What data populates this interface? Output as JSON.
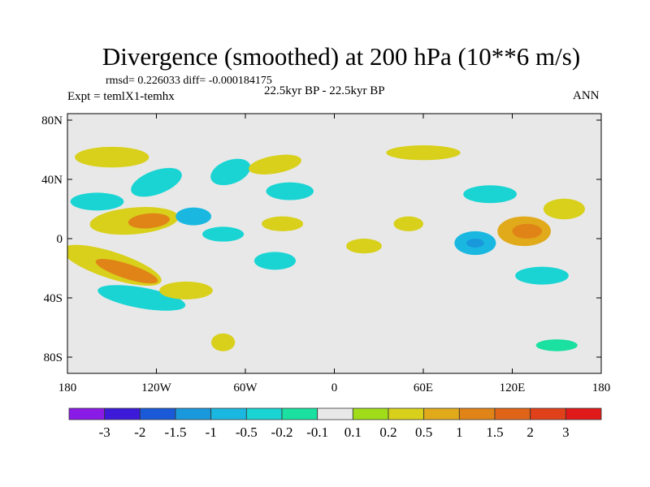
{
  "chart_data": {
    "type": "heatmap",
    "title": "Divergence (smoothed) at 200 hPa (10**6 m/s)",
    "stats": "rmsd= 0.226033 diff= -0.000184175",
    "left_label": "Expt = temlX1-temhx",
    "center_label": "22.5kyr BP - 22.5kyr BP",
    "right_label": "ANN",
    "xlim": [
      -180,
      180
    ],
    "ylim": [
      -90,
      90
    ],
    "xticks": [
      {
        "v": -180,
        "l": "180"
      },
      {
        "v": -120,
        "l": "120W"
      },
      {
        "v": -60,
        "l": "60W"
      },
      {
        "v": 0,
        "l": "0"
      },
      {
        "v": 60,
        "l": "60E"
      },
      {
        "v": 120,
        "l": "120E"
      },
      {
        "v": 180,
        "l": "180"
      }
    ],
    "yticks": [
      {
        "v": 80,
        "l": "80N"
      },
      {
        "v": 40,
        "l": "40N"
      },
      {
        "v": 0,
        "l": "0"
      },
      {
        "v": -40,
        "l": "40S"
      },
      {
        "v": -80,
        "l": "80S"
      }
    ],
    "colorbar": {
      "levels": [
        "-3",
        "-2",
        "-1.5",
        "-1",
        "-0.5",
        "-0.2",
        "-0.1",
        "0.1",
        "0.2",
        "0.5",
        "1",
        "1.5",
        "2",
        "3"
      ],
      "colors": [
        "#8a1ae6",
        "#3c1ad8",
        "#1a5ad8",
        "#1a98dc",
        "#1ab8e0",
        "#1ad4d4",
        "#1ae0a0",
        "#e8e8e8",
        "#a0dc1a",
        "#d8d01a",
        "#e0aa1a",
        "#e08418",
        "#e06418",
        "#e0401a",
        "#e01a1a"
      ]
    },
    "fields": [
      {
        "lon": -150,
        "lat": -18,
        "rx": 35,
        "ry": 9,
        "rot": 18,
        "v": 0.4
      },
      {
        "lon": -140,
        "lat": -22,
        "rx": 22,
        "ry": 5,
        "rot": 18,
        "v": 1.2
      },
      {
        "lon": -130,
        "lat": -40,
        "rx": 30,
        "ry": 7,
        "rot": 10,
        "v": -0.4
      },
      {
        "lon": -100,
        "lat": -35,
        "rx": 18,
        "ry": 6,
        "rot": 0,
        "v": 0.3
      },
      {
        "lon": -135,
        "lat": 12,
        "rx": 30,
        "ry": 9,
        "rot": -5,
        "v": 0.4
      },
      {
        "lon": -125,
        "lat": 12,
        "rx": 14,
        "ry": 5,
        "rot": -5,
        "v": 1.1
      },
      {
        "lon": -160,
        "lat": 25,
        "rx": 18,
        "ry": 6,
        "rot": 0,
        "v": -0.4
      },
      {
        "lon": -120,
        "lat": 38,
        "rx": 18,
        "ry": 8,
        "rot": -20,
        "v": -0.4
      },
      {
        "lon": -150,
        "lat": 55,
        "rx": 25,
        "ry": 7,
        "rot": 0,
        "v": 0.3
      },
      {
        "lon": -95,
        "lat": 15,
        "rx": 12,
        "ry": 6,
        "rot": 0,
        "v": -0.8
      },
      {
        "lon": -75,
        "lat": 3,
        "rx": 14,
        "ry": 5,
        "rot": 0,
        "v": -0.4
      },
      {
        "lon": -70,
        "lat": 45,
        "rx": 14,
        "ry": 8,
        "rot": -20,
        "v": -0.4
      },
      {
        "lon": -40,
        "lat": 50,
        "rx": 18,
        "ry": 6,
        "rot": -10,
        "v": 0.4
      },
      {
        "lon": -30,
        "lat": 32,
        "rx": 16,
        "ry": 6,
        "rot": 0,
        "v": -0.4
      },
      {
        "lon": -35,
        "lat": 10,
        "rx": 14,
        "ry": 5,
        "rot": 0,
        "v": 0.3
      },
      {
        "lon": -40,
        "lat": -15,
        "rx": 14,
        "ry": 6,
        "rot": 0,
        "v": -0.3
      },
      {
        "lon": 20,
        "lat": -5,
        "rx": 12,
        "ry": 5,
        "rot": 0,
        "v": 0.3
      },
      {
        "lon": 50,
        "lat": 10,
        "rx": 10,
        "ry": 5,
        "rot": 0,
        "v": 0.3
      },
      {
        "lon": 95,
        "lat": -3,
        "rx": 14,
        "ry": 8,
        "rot": 0,
        "v": -0.6
      },
      {
        "lon": 95,
        "lat": -3,
        "rx": 6,
        "ry": 3,
        "rot": 0,
        "v": -1.2
      },
      {
        "lon": 128,
        "lat": 5,
        "rx": 18,
        "ry": 10,
        "rot": 0,
        "v": 0.6
      },
      {
        "lon": 130,
        "lat": 5,
        "rx": 10,
        "ry": 5,
        "rot": 0,
        "v": 1.3
      },
      {
        "lon": 155,
        "lat": 20,
        "rx": 14,
        "ry": 7,
        "rot": 0,
        "v": 0.3
      },
      {
        "lon": 140,
        "lat": -25,
        "rx": 18,
        "ry": 6,
        "rot": 0,
        "v": -0.3
      },
      {
        "lon": 105,
        "lat": 30,
        "rx": 18,
        "ry": 6,
        "rot": 0,
        "v": -0.3
      },
      {
        "lon": 60,
        "lat": 58,
        "rx": 25,
        "ry": 5,
        "rot": 0,
        "v": 0.3
      },
      {
        "lon": -75,
        "lat": -70,
        "rx": 8,
        "ry": 6,
        "rot": 0,
        "v": 0.3
      },
      {
        "lon": 150,
        "lat": -72,
        "rx": 14,
        "ry": 4,
        "rot": 0,
        "v": -0.2
      }
    ]
  }
}
